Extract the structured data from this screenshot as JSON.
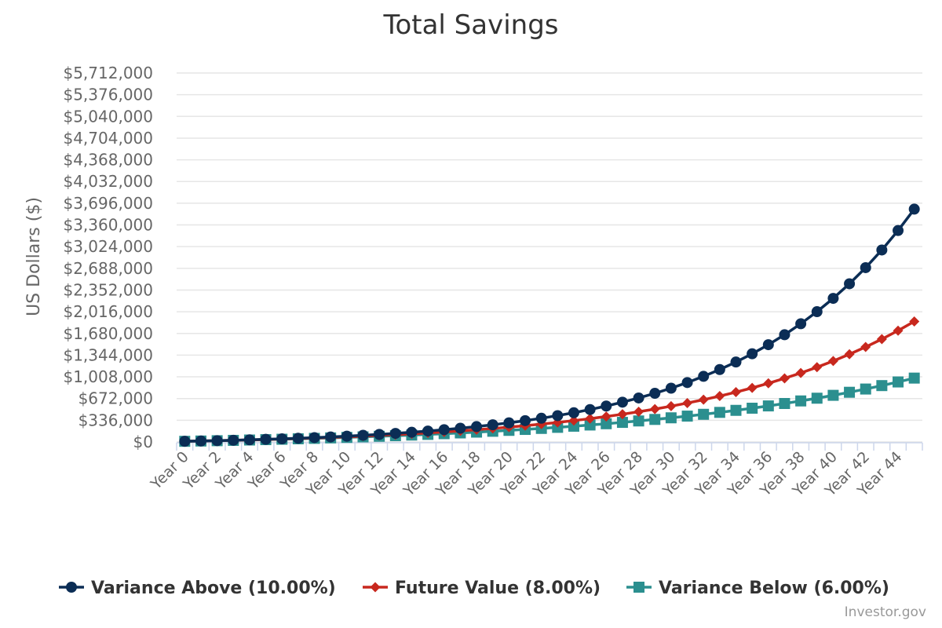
{
  "chart_data": {
    "type": "line",
    "title": "Total Savings",
    "xlabel": "",
    "ylabel": "US Dollars ($)",
    "ylim": [
      0,
      5712000
    ],
    "y_ticks": [
      "$0",
      "$336,000",
      "$672,000",
      "$1,008,000",
      "$1,344,000",
      "$1,680,000",
      "$2,016,000",
      "$2,352,000",
      "$2,688,000",
      "$3,024,000",
      "$3,360,000",
      "$3,696,000",
      "$4,032,000",
      "$4,368,000",
      "$4,704,000",
      "$5,040,000",
      "$5,376,000",
      "$5,712,000"
    ],
    "y_tick_values": [
      0,
      336000,
      672000,
      1008000,
      1344000,
      1680000,
      2016000,
      2352000,
      2688000,
      3024000,
      3360000,
      3696000,
      4032000,
      4368000,
      4704000,
      5040000,
      5376000,
      5712000
    ],
    "categories": [
      "Year 0",
      "Year 1",
      "Year 2",
      "Year 3",
      "Year 4",
      "Year 5",
      "Year 6",
      "Year 7",
      "Year 8",
      "Year 9",
      "Year 10",
      "Year 11",
      "Year 12",
      "Year 13",
      "Year 14",
      "Year 15",
      "Year 16",
      "Year 17",
      "Year 18",
      "Year 19",
      "Year 20",
      "Year 21",
      "Year 22",
      "Year 23",
      "Year 24",
      "Year 25",
      "Year 26",
      "Year 27",
      "Year 28",
      "Year 29",
      "Year 30",
      "Year 31",
      "Year 32",
      "Year 33",
      "Year 34",
      "Year 35",
      "Year 36",
      "Year 37",
      "Year 38",
      "Year 39",
      "Year 40",
      "Year 41",
      "Year 42",
      "Year 43",
      "Year 44",
      "Year 45"
    ],
    "x_tick_labels": [
      "Year 0",
      "Year 2",
      "Year 4",
      "Year 6",
      "Year 8",
      "Year 10",
      "Year 12",
      "Year 14",
      "Year 16",
      "Year 18",
      "Year 20",
      "Year 22",
      "Year 24",
      "Year 26",
      "Year 28",
      "Year 30",
      "Year 32",
      "Year 34",
      "Year 36",
      "Year 38",
      "Year 40",
      "Year 42",
      "Year 44"
    ],
    "grid": true,
    "legend_position": "bottom",
    "series": [
      {
        "name": "Variance Above (10.00%)",
        "color": "#0b2d55",
        "marker": "circle",
        "values": [
          10000,
          15000,
          20500,
          26550,
          33205,
          40526,
          48578,
          57436,
          67180,
          77898,
          89687,
          102656,
          116922,
          132614,
          149875,
          168863,
          189749,
          212724,
          237996,
          265796,
          296376,
          330013,
          367015,
          407716,
          452488,
          501736,
          555910,
          615501,
          681051,
          753156,
          832472,
          919719,
          1015691,
          1121260,
          1237386,
          1365125,
          1505637,
          1660201,
          1830221,
          2017243,
          2222967,
          2449264,
          2698190,
          2972009,
          3273210,
          3604531
        ]
      },
      {
        "name": "Future Value (8.00%)",
        "color": "#c8281e",
        "marker": "diamond",
        "values": [
          10000,
          14800,
          19984,
          25583,
          31629,
          38160,
          45212,
          52829,
          61055,
          69939,
          79534,
          89897,
          101089,
          113176,
          126230,
          140329,
          155555,
          172000,
          189760,
          208941,
          229656,
          252029,
          276191,
          302286,
          330469,
          360906,
          393779,
          429281,
          467623,
          509033,
          553756,
          602056,
          654220,
          710558,
          771402,
          837114,
          908083,
          984730,
          1067508,
          1156909,
          1253462,
          1357738,
          1470357,
          1591986,
          1723345,
          1865212
        ]
      },
      {
        "name": "Variance Below (6.00%)",
        "color": "#2b8f8f",
        "marker": "square",
        "values": [
          10000,
          14600,
          19476,
          24645,
          30123,
          35931,
          42087,
          48612,
          55529,
          62861,
          70633,
          78871,
          87603,
          96860,
          106671,
          117071,
          128096,
          139782,
          152169,
          165299,
          179217,
          193970,
          209608,
          226185,
          243756,
          262382,
          282125,
          303052,
          325236,
          348750,
          373675,
          400096,
          428101,
          457787,
          489254,
          522609,
          557965,
          595443,
          635170,
          677280,
          721917,
          769232,
          819386,
          872549,
          928902,
          988636
        ]
      }
    ]
  },
  "credit": "Investor.gov"
}
